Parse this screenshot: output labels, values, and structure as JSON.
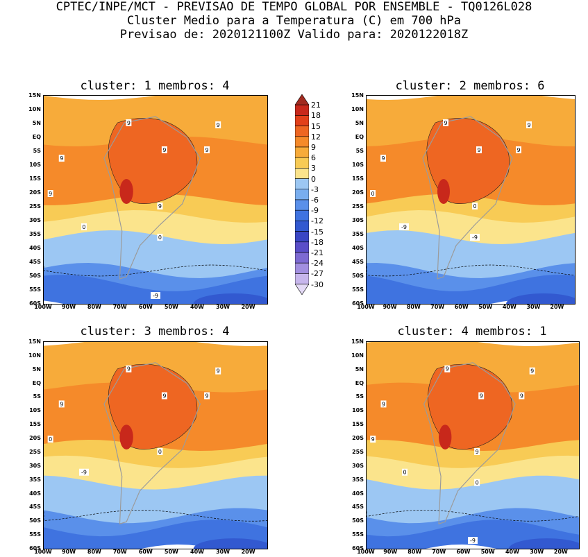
{
  "header": {
    "line1": "CPTEC/INPE/MCT - PREVISAO DE TEMPO GLOBAL POR ENSEMBLE - TQ0126L028",
    "line2": "Cluster Medio para a Temperatura (C) em 700 hPa",
    "line3": "Previsao de: 2020121100Z   Valido para: 2020122018Z"
  },
  "lat_ticks": [
    "15N",
    "10N",
    "5N",
    "EQ",
    "5S",
    "10S",
    "15S",
    "20S",
    "25S",
    "30S",
    "35S",
    "40S",
    "45S",
    "50S",
    "55S",
    "60S"
  ],
  "lon_ticks": [
    "100W",
    "90W",
    "80W",
    "70W",
    "60W",
    "50W",
    "40W",
    "30W",
    "20W"
  ],
  "panels": [
    {
      "title": "cluster: 1   membros: 4",
      "contour_labels": [
        "9",
        "9",
        "9",
        "9",
        "9",
        "9",
        "9",
        "0",
        "0",
        "-9"
      ]
    },
    {
      "title": "cluster: 2   membros: 6",
      "contour_labels": [
        "9",
        "9",
        "9",
        "9",
        "9",
        "0",
        "0",
        "-9",
        "-9"
      ]
    },
    {
      "title": "cluster: 3   membros: 4",
      "contour_labels": [
        "9",
        "9",
        "9",
        "9",
        "9",
        "0",
        "0",
        "-9"
      ]
    },
    {
      "title": "cluster: 4   membros: 1",
      "contour_labels": [
        "9",
        "9",
        "9",
        "9",
        "9",
        "9",
        "9",
        "0",
        "0",
        "-9"
      ]
    }
  ],
  "colorbar": {
    "labels": [
      "21",
      "18",
      "15",
      "12",
      "9",
      "6",
      "3",
      "0",
      "-3",
      "-6",
      "-9",
      "-12",
      "-15",
      "-18",
      "-21",
      "-24",
      "-27",
      "-30"
    ],
    "colors": [
      "#a12a1f",
      "#c8281b",
      "#e2401a",
      "#ee6622",
      "#f58a2a",
      "#f7ab3a",
      "#f8cb55",
      "#fbe48c",
      "#9cc7f3",
      "#79aeef",
      "#5a90ea",
      "#3f73e0",
      "#3259d0",
      "#3a46c4",
      "#5a4ec8",
      "#7d6ad2",
      "#a28fe0",
      "#c7b6ec",
      "#e4daf6"
    ],
    "bounds_c": [
      -30,
      21
    ]
  }
}
